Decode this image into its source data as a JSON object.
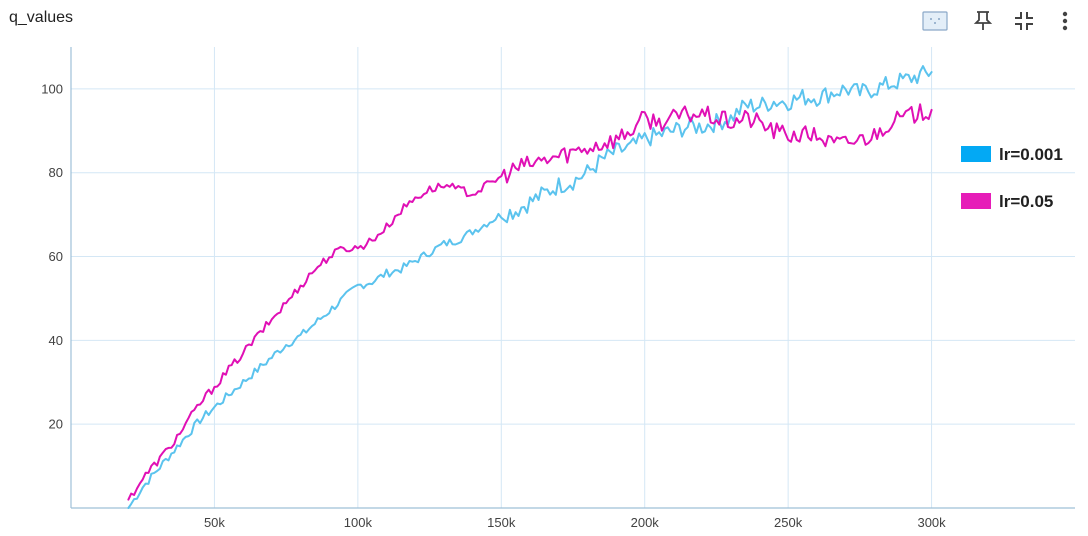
{
  "card": {
    "title": "q_values"
  },
  "toolbar": [
    {
      "name": "fit-domain-icon"
    },
    {
      "name": "pin-icon"
    },
    {
      "name": "collapse-icon"
    },
    {
      "name": "more-vert-icon"
    }
  ],
  "chart_data": {
    "type": "line",
    "title": "",
    "xlabel": "",
    "ylabel": "",
    "xlim": [
      0,
      350000
    ],
    "ylim": [
      0,
      110
    ],
    "xticks": [
      50000,
      100000,
      150000,
      200000,
      250000,
      300000
    ],
    "xtick_labels": [
      "50k",
      "100k",
      "150k",
      "200k",
      "250k",
      "300k"
    ],
    "yticks": [
      20,
      40,
      60,
      80,
      100
    ],
    "ytick_labels": [
      "20",
      "40",
      "60",
      "80",
      "100"
    ],
    "grid": true,
    "legend_position": "right",
    "series": [
      {
        "name": "lr=0.001",
        "color": "#5bc3ee",
        "legend_color": "#03a9f4",
        "x": [
          20000,
          25000,
          30000,
          35000,
          40000,
          45000,
          50000,
          55000,
          60000,
          65000,
          70000,
          75000,
          80000,
          85000,
          90000,
          95000,
          100000,
          105000,
          110000,
          115000,
          120000,
          125000,
          130000,
          135000,
          140000,
          145000,
          150000,
          155000,
          160000,
          165000,
          170000,
          175000,
          180000,
          185000,
          190000,
          195000,
          200000,
          205000,
          210000,
          215000,
          220000,
          225000,
          230000,
          235000,
          240000,
          245000,
          250000,
          255000,
          260000,
          265000,
          270000,
          275000,
          280000,
          285000,
          290000,
          295000,
          300000
        ],
        "y": [
          0,
          5,
          9,
          13,
          17,
          21,
          24,
          27,
          30,
          33,
          36,
          39,
          41,
          44,
          47,
          50,
          53,
          54,
          56,
          57,
          59,
          61,
          63,
          64,
          66,
          68,
          70,
          71,
          73,
          75,
          77,
          78,
          80,
          83,
          85,
          86,
          88,
          89,
          90,
          91,
          91,
          92,
          93,
          96,
          96,
          97,
          97,
          98,
          98,
          99,
          100,
          99,
          100,
          101,
          102,
          103,
          104
        ]
      },
      {
        "name": "lr=0.05",
        "color": "#e010b5",
        "legend_color": "#e61cb8",
        "x": [
          20000,
          25000,
          30000,
          35000,
          40000,
          45000,
          50000,
          55000,
          60000,
          65000,
          70000,
          75000,
          80000,
          85000,
          90000,
          95000,
          100000,
          105000,
          110000,
          115000,
          120000,
          125000,
          130000,
          135000,
          140000,
          145000,
          150000,
          155000,
          160000,
          165000,
          170000,
          175000,
          180000,
          185000,
          190000,
          195000,
          200000,
          205000,
          210000,
          215000,
          220000,
          225000,
          230000,
          235000,
          240000,
          245000,
          250000,
          255000,
          260000,
          265000,
          270000,
          275000,
          280000,
          285000,
          290000,
          295000,
          300000
        ],
        "y": [
          2,
          7,
          11,
          15,
          20,
          25,
          29,
          33,
          37,
          41,
          45,
          49,
          53,
          57,
          60,
          62,
          62,
          64,
          67,
          71,
          74,
          76,
          77,
          76,
          75,
          77,
          79,
          81,
          82,
          83,
          84,
          85,
          86,
          87,
          88,
          90,
          93,
          92,
          93,
          94,
          94,
          93,
          92,
          93,
          92,
          90,
          89,
          89,
          89,
          87,
          87,
          88,
          89,
          92,
          93,
          94,
          95
        ]
      }
    ]
  }
}
